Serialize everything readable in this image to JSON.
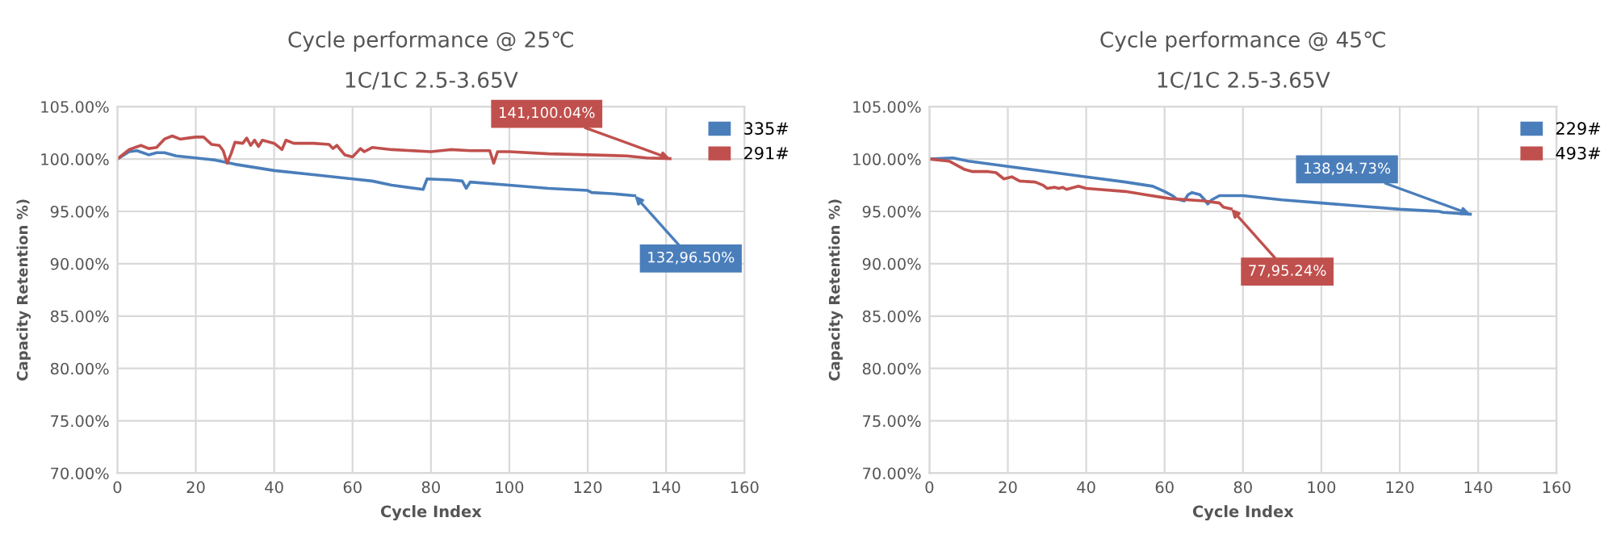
{
  "chart_data": [
    {
      "type": "line",
      "title": "Cycle performance @ 25℃",
      "subtitle": "1C/1C 2.5-3.65V",
      "xlabel": "Cycle Index",
      "ylabel": "Capacity Retention %)",
      "xlim": [
        0,
        160
      ],
      "xticks": [
        0,
        20,
        40,
        60,
        80,
        100,
        120,
        140,
        160
      ],
      "ylim": [
        70,
        105
      ],
      "yticks": [
        {
          "value": 70,
          "label": "70.00%"
        },
        {
          "value": 75,
          "label": "75.00%"
        },
        {
          "value": 80,
          "label": "80.00%"
        },
        {
          "value": 85,
          "label": "85.00%"
        },
        {
          "value": 90,
          "label": "90.00%"
        },
        {
          "value": 95,
          "label": "95.00%"
        },
        {
          "value": 100,
          "label": "100.00%"
        },
        {
          "value": 105,
          "label": "105.00%"
        }
      ],
      "grid": true,
      "legend": "top right",
      "marker": "none",
      "line_style": "solid",
      "series": [
        {
          "name": "335#",
          "color": "#4a7ebb",
          "x": [
            0,
            3,
            5,
            8,
            10,
            12,
            15,
            20,
            25,
            30,
            40,
            50,
            60,
            65,
            70,
            78,
            79,
            85,
            88,
            89,
            90,
            100,
            110,
            120,
            121,
            126,
            132
          ],
          "values": [
            100,
            100.7,
            100.8,
            100.4,
            100.6,
            100.6,
            100.3,
            100.1,
            99.9,
            99.5,
            98.9,
            98.5,
            98.1,
            97.9,
            97.5,
            97.1,
            98.1,
            98.0,
            97.9,
            97.2,
            97.8,
            97.5,
            97.2,
            97.0,
            96.8,
            96.7,
            96.5
          ]
        },
        {
          "name": "291#",
          "color": "#c0504d",
          "x": [
            0,
            3,
            6,
            8,
            10,
            12,
            14,
            16,
            18,
            20,
            22,
            24,
            26,
            27,
            28,
            29,
            30,
            32,
            33,
            34,
            35,
            36,
            37,
            40,
            42,
            43,
            45,
            50,
            54,
            55,
            56,
            58,
            60,
            62,
            63,
            65,
            70,
            80,
            85,
            90,
            95,
            96,
            97,
            100,
            110,
            120,
            130,
            135,
            141
          ],
          "values": [
            100,
            100.9,
            101.3,
            101.0,
            101.1,
            101.9,
            102.2,
            101.9,
            102.0,
            102.1,
            102.1,
            101.4,
            101.3,
            100.8,
            99.6,
            100.5,
            101.6,
            101.5,
            102.0,
            101.3,
            101.8,
            101.2,
            101.8,
            101.5,
            100.9,
            101.8,
            101.5,
            101.5,
            101.4,
            101.0,
            101.3,
            100.4,
            100.2,
            101.0,
            100.7,
            101.1,
            100.9,
            100.7,
            100.9,
            100.8,
            100.8,
            99.6,
            100.7,
            100.7,
            100.5,
            100.4,
            100.3,
            100.1,
            100.04
          ]
        }
      ],
      "annotations": [
        {
          "text": "132,96.50%",
          "x": 132,
          "y": 96.5
        },
        {
          "text": "141,100.04%",
          "x": 141,
          "y": 100.04
        }
      ]
    },
    {
      "type": "line",
      "title": "Cycle performance @ 45℃",
      "subtitle": "1C/1C 2.5-3.65V",
      "xlabel": "Cycle Index",
      "ylabel": "Capacity Retention %)",
      "xlim": [
        0,
        160
      ],
      "xticks": [
        0,
        20,
        40,
        60,
        80,
        100,
        120,
        140,
        160
      ],
      "ylim": [
        70,
        105
      ],
      "yticks": [
        {
          "value": 70,
          "label": "70.00%"
        },
        {
          "value": 75,
          "label": "75.00%"
        },
        {
          "value": 80,
          "label": "80.00%"
        },
        {
          "value": 85,
          "label": "85.00%"
        },
        {
          "value": 90,
          "label": "90.00%"
        },
        {
          "value": 95,
          "label": "95.00%"
        },
        {
          "value": 100,
          "label": "100.00%"
        },
        {
          "value": 105,
          "label": "105.00%"
        }
      ],
      "grid": true,
      "legend": "top right",
      "marker": "none",
      "line_style": "solid",
      "series": [
        {
          "name": "229#",
          "color": "#4a7ebb",
          "x": [
            0,
            6,
            10,
            20,
            30,
            40,
            50,
            57,
            60,
            62,
            63,
            65,
            66,
            67,
            69,
            70,
            71,
            72,
            74,
            80,
            90,
            100,
            110,
            120,
            130,
            131,
            138
          ],
          "values": [
            100,
            100.1,
            99.8,
            99.3,
            98.8,
            98.3,
            97.8,
            97.4,
            96.9,
            96.5,
            96.2,
            96.0,
            96.6,
            96.8,
            96.6,
            96.2,
            95.7,
            96.1,
            96.5,
            96.5,
            96.1,
            95.8,
            95.5,
            95.2,
            95.0,
            94.9,
            94.73
          ]
        },
        {
          "name": "493#",
          "color": "#c0504d",
          "x": [
            0,
            5,
            7,
            9,
            11,
            15,
            17,
            19,
            21,
            23,
            27,
            29,
            30,
            32,
            33,
            34,
            35,
            38,
            40,
            50,
            55,
            60,
            62,
            70,
            74,
            75,
            77
          ],
          "values": [
            100,
            99.8,
            99.4,
            99.0,
            98.8,
            98.8,
            98.7,
            98.1,
            98.3,
            97.9,
            97.8,
            97.5,
            97.2,
            97.3,
            97.2,
            97.3,
            97.1,
            97.4,
            97.2,
            96.9,
            96.6,
            96.3,
            96.2,
            96.0,
            95.8,
            95.4,
            95.24
          ]
        }
      ],
      "annotations": [
        {
          "text": "138,94.73%",
          "x": 138,
          "y": 94.73
        },
        {
          "text": "77,95.24%",
          "x": 77,
          "y": 95.24
        }
      ]
    }
  ]
}
